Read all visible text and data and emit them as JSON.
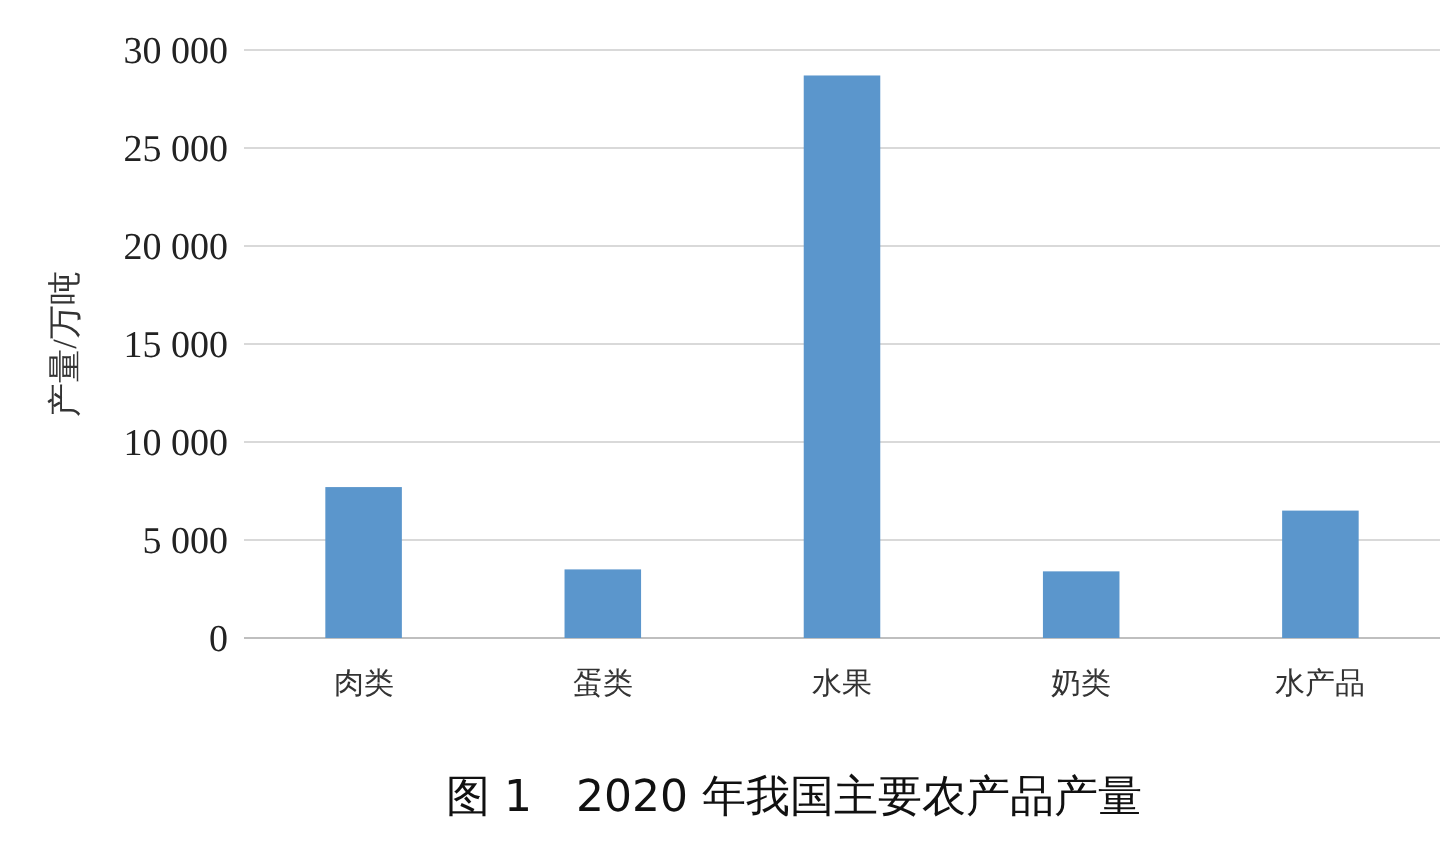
{
  "chart_data": {
    "type": "bar",
    "title": "图 1　2020 年我国主要农产品产量",
    "ylabel": "产量/万吨",
    "categories": [
      "肉类",
      "蛋类",
      "水果",
      "奶类",
      "水产品"
    ],
    "values": [
      7700,
      3500,
      28700,
      3400,
      6500
    ],
    "color": "#5b96cc",
    "ylim": [
      0,
      30000
    ],
    "yticks": [
      0,
      {
        "value": 5000,
        "label": "5 000"
      },
      {
        "value": 10000,
        "label": "10 000"
      },
      {
        "value": 15000,
        "label": "15 000"
      },
      {
        "value": 20000,
        "label": "20 000"
      },
      {
        "value": 25000,
        "label": "25 000"
      },
      {
        "value": 30000,
        "label": "30 000"
      }
    ],
    "grid": true
  }
}
